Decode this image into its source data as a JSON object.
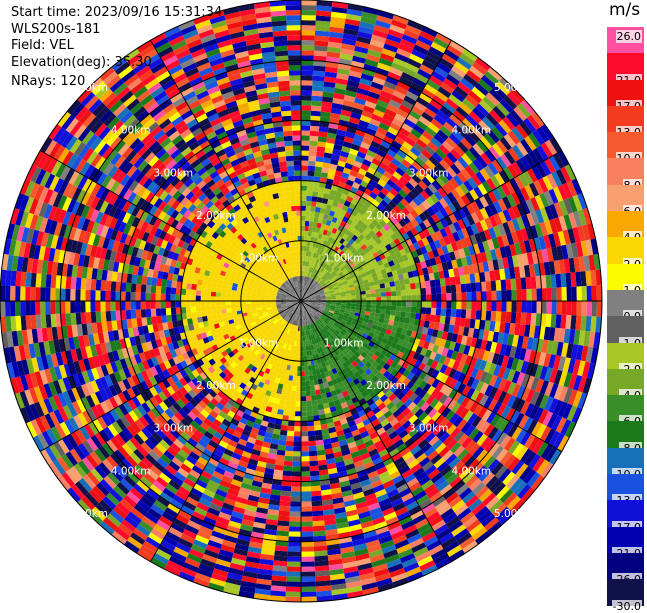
{
  "header": {
    "start_time": "Start time: 2023/09/16 15:31:34",
    "station": "WLS200s-181",
    "field": "Field: VEL",
    "elevation": "Elevation(deg): 35.30",
    "nrays": "NRays: 120"
  },
  "colorbar": {
    "unit": "m/s",
    "labels": [
      "26.0",
      "21.0",
      "17.0",
      "13.0",
      "10.0",
      "8.0",
      "6.0",
      "4.0",
      "2.0",
      "1.0",
      "0.0",
      "-1.0",
      "-2.0",
      "-4.0",
      "-6.0",
      "-8.0",
      "-10.0",
      "-13.0",
      "-17.0",
      "-21.0",
      "-26.0",
      "-30.0"
    ],
    "colors": [
      "#ff4fa0",
      "#ff0a2a",
      "#ee1111",
      "#f33b20",
      "#f55a2f",
      "#f78060",
      "#f8a070",
      "#f8a800",
      "#f8d800",
      "#fcfc00",
      "#808080",
      "#606060",
      "#a8c828",
      "#78a828",
      "#3a8e2a",
      "#1c7a1c",
      "#1870b8",
      "#1a52e0",
      "#1010d8",
      "#0000b0",
      "#000080",
      "#10104a"
    ]
  },
  "chart_data": {
    "type": "heatmap",
    "title": "",
    "field": "VEL",
    "unit": "m/s",
    "nrays": 120,
    "elevation_deg": 35.3,
    "range_rings_label": [
      "1.00km",
      "2.00km",
      "3.00km",
      "4.00km",
      "5.00km"
    ],
    "range_rings_km": [
      1,
      2,
      3,
      4,
      5
    ],
    "max_range_km": 5,
    "azimuth_lines_deg": [
      0,
      30,
      60,
      90,
      120,
      150
    ],
    "color_levels": [
      -30,
      -26,
      -21,
      -17,
      -13,
      -10,
      -8,
      -6,
      -4,
      -2,
      -1,
      0,
      1,
      2,
      4,
      6,
      8,
      10,
      13,
      17,
      21,
      26
    ],
    "sectors": [
      {
        "name": "northwest-inner",
        "azimuth_from_deg": 270,
        "azimuth_to_deg": 360,
        "range_km": [
          0.2,
          2.0
        ],
        "velocity_ms": 3.0
      },
      {
        "name": "southwest-inner",
        "azimuth_from_deg": 180,
        "azimuth_to_deg": 270,
        "range_km": [
          0.2,
          2.0
        ],
        "velocity_ms": 2.5
      },
      {
        "name": "northeast-inner",
        "azimuth_from_deg": 0,
        "azimuth_to_deg": 90,
        "range_km": [
          0.2,
          2.0
        ],
        "velocity_ms": -2.0
      },
      {
        "name": "southeast-inner",
        "azimuth_from_deg": 90,
        "azimuth_to_deg": 180,
        "range_km": [
          0.2,
          2.0
        ],
        "velocity_ms": -6.0
      },
      {
        "name": "center",
        "azimuth_from_deg": 0,
        "azimuth_to_deg": 360,
        "range_km": [
          0.0,
          0.5
        ],
        "velocity_ms": 0.0
      },
      {
        "name": "outer-noise",
        "azimuth_from_deg": 0,
        "azimuth_to_deg": 360,
        "range_km": [
          2.0,
          5.0
        ],
        "velocity_ms": null
      }
    ]
  }
}
